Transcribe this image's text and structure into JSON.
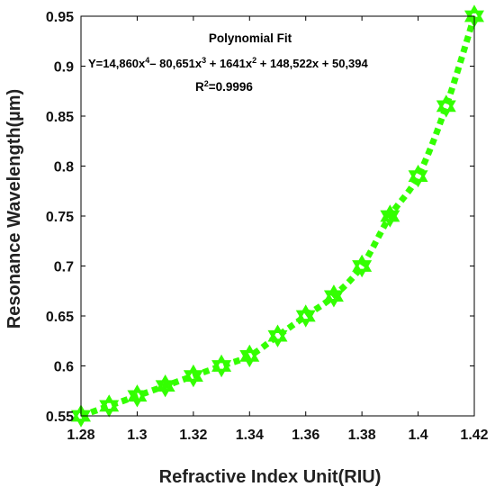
{
  "chart_data": {
    "type": "line",
    "title": "",
    "xlabel": "Refractive Index Unit(RIU)",
    "ylabel": "Resonance Wavelength(µm)",
    "xlim": [
      1.28,
      1.42
    ],
    "ylim": [
      0.55,
      0.95
    ],
    "xticks": [
      "1.28",
      "1.3",
      "1.32",
      "1.34",
      "1.36",
      "1.38",
      "1.4",
      "1.42"
    ],
    "yticks": [
      "0.55",
      "0.6",
      "0.65",
      "0.7",
      "0.75",
      "0.8",
      "0.85",
      "0.9",
      "0.95"
    ],
    "grid": false,
    "series": [
      {
        "color": "#33ff00",
        "line_style": "dotted",
        "marker": "hexagram",
        "x": [
          1.28,
          1.29,
          1.3,
          1.31,
          1.32,
          1.33,
          1.34,
          1.35,
          1.36,
          1.37,
          1.38,
          1.39,
          1.4,
          1.41,
          1.42
        ],
        "y": [
          0.55,
          0.56,
          0.57,
          0.58,
          0.59,
          0.6,
          0.61,
          0.63,
          0.65,
          0.67,
          0.7,
          0.75,
          0.79,
          0.86,
          0.95
        ]
      }
    ],
    "annotations": {
      "fit_title": "Polynomial Fit",
      "equation": {
        "p1": "Y=14,860x",
        "e1": "4",
        "p2": "– 80,651x",
        "e2": "3",
        "p3": " + 1641x",
        "e3": "2",
        "p4": " + 148,522x + 50,394"
      },
      "r2": {
        "p1": "R",
        "e1": "2",
        "p2": "=0.9996"
      }
    }
  }
}
